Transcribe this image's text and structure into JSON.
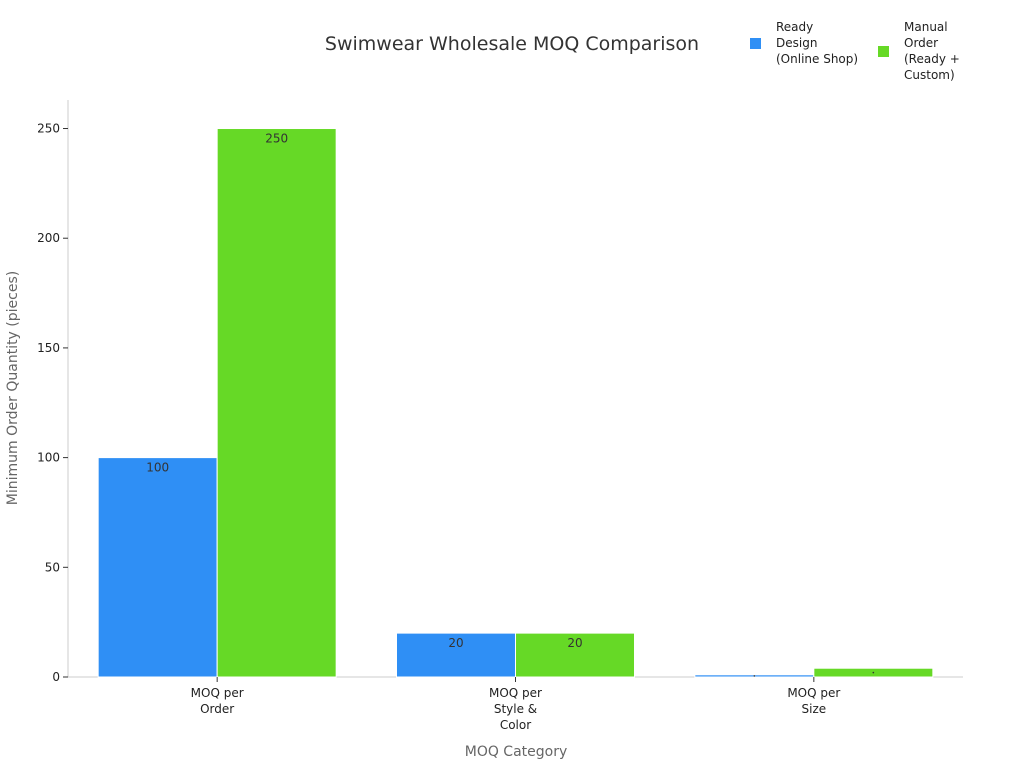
{
  "chart_data": {
    "type": "bar",
    "title": "Swimwear Wholesale MOQ Comparison",
    "xlabel": "MOQ Category",
    "ylabel": "Minimum Order Quantity (pieces)",
    "categories": [
      [
        "MOQ per",
        "Order"
      ],
      [
        "MOQ per",
        "Style &",
        "Color"
      ],
      [
        "MOQ per",
        "Size"
      ]
    ],
    "series": [
      {
        "name": [
          "Ready",
          "Design",
          "(Online Shop)"
        ],
        "color": "#2f8ff5",
        "values": [
          100,
          20,
          1
        ],
        "labels": [
          "100",
          "20",
          ""
        ]
      },
      {
        "name": [
          "Manual",
          "Order",
          "(Ready +",
          "Custom)"
        ],
        "color": "#66d926",
        "values": [
          250,
          20,
          4
        ],
        "labels": [
          "250",
          "20",
          ""
        ]
      }
    ],
    "ylim": [
      0,
      263
    ],
    "yticks": [
      0,
      50,
      100,
      150,
      200,
      250
    ],
    "grid": false,
    "legend_position": "top-right"
  }
}
